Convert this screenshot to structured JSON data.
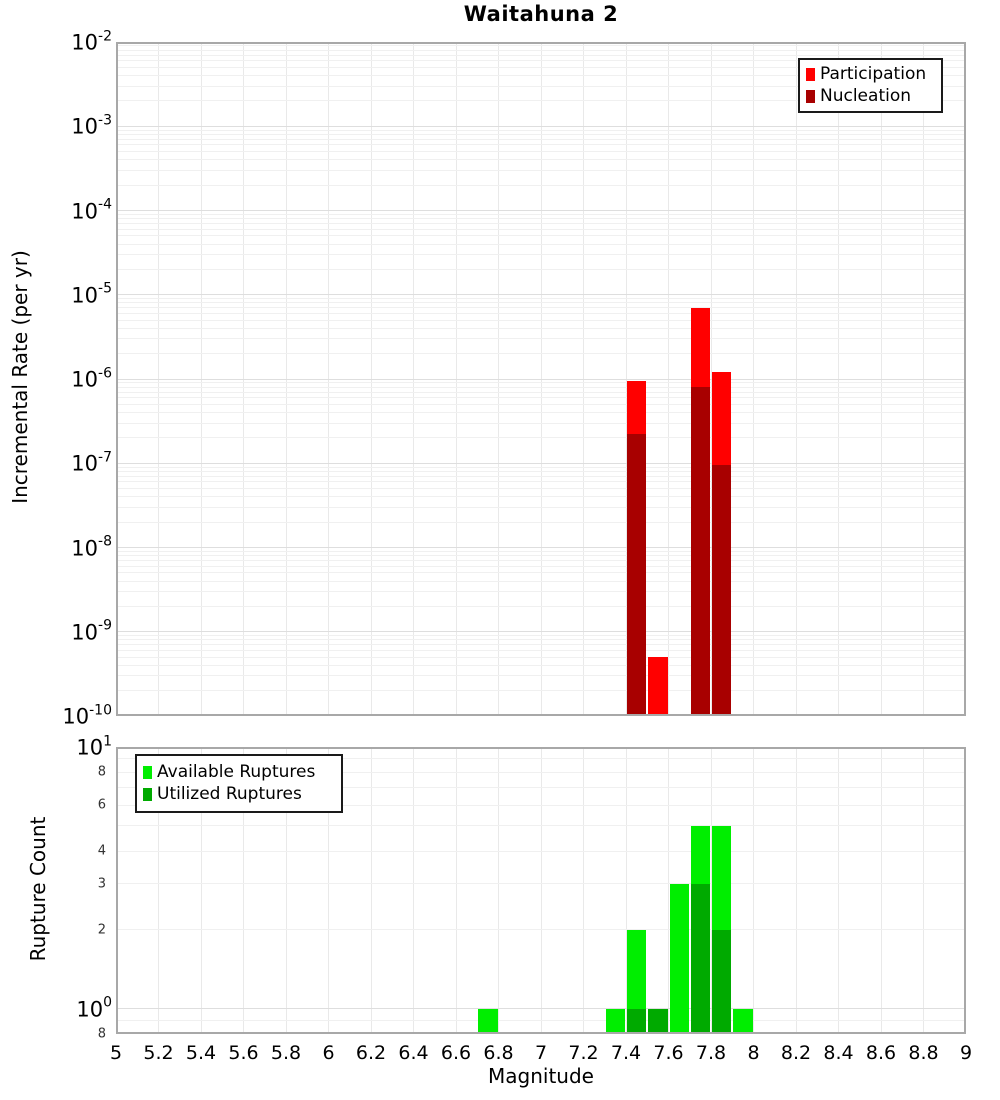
{
  "title": "Waitahuna 2",
  "xlabel": "Magnitude",
  "x_ticks": [
    {
      "label": "5",
      "value": 5
    },
    {
      "label": "5.2",
      "value": 5.2
    },
    {
      "label": "5.4",
      "value": 5.4
    },
    {
      "label": "5.6",
      "value": 5.6
    },
    {
      "label": "5.8",
      "value": 5.8
    },
    {
      "label": "6",
      "value": 6
    },
    {
      "label": "6.2",
      "value": 6.2
    },
    {
      "label": "6.4",
      "value": 6.4
    },
    {
      "label": "6.6",
      "value": 6.6
    },
    {
      "label": "6.8",
      "value": 6.8
    },
    {
      "label": "7",
      "value": 7
    },
    {
      "label": "7.2",
      "value": 7.2
    },
    {
      "label": "7.4",
      "value": 7.4
    },
    {
      "label": "7.6",
      "value": 7.6
    },
    {
      "label": "7.8",
      "value": 7.8
    },
    {
      "label": "8",
      "value": 8
    },
    {
      "label": "8.2",
      "value": 8.2
    },
    {
      "label": "8.4",
      "value": 8.4
    },
    {
      "label": "8.6",
      "value": 8.6
    },
    {
      "label": "8.8",
      "value": 8.8
    },
    {
      "label": "9",
      "value": 9
    }
  ],
  "colors": {
    "participation": "#ff0000",
    "nucleation": "#a80000",
    "available": "#00ee00",
    "utilized": "#00aa00",
    "grid_minor": "#f0f0f0",
    "grid_major": "#dedede",
    "grid_vertical": "#e9e9e9",
    "plot_border": "#a8a8a8",
    "legend_border": "#1a1a1a"
  },
  "chart_data": [
    {
      "type": "bar",
      "title": "Waitahuna 2",
      "ylabel": "Incremental Rate (per yr)",
      "xlabel": "Magnitude",
      "yscale": "log",
      "ylim": [
        1e-10,
        0.01
      ],
      "xlim": [
        5,
        9
      ],
      "bin_width": 0.1,
      "grid": true,
      "legend_position": "top-right",
      "legend": [
        {
          "label": "Participation",
          "color": "#ff0000"
        },
        {
          "label": "Nucleation",
          "color": "#a80000"
        }
      ],
      "y_major_ticks": [
        {
          "base": "10",
          "exp": "-2",
          "value": 0.01
        },
        {
          "base": "10",
          "exp": "-3",
          "value": 0.001
        },
        {
          "base": "10",
          "exp": "-4",
          "value": 0.0001
        },
        {
          "base": "10",
          "exp": "-5",
          "value": 1e-05
        },
        {
          "base": "10",
          "exp": "-6",
          "value": 1e-06
        },
        {
          "base": "10",
          "exp": "-7",
          "value": 1e-07
        },
        {
          "base": "10",
          "exp": "-8",
          "value": 1e-08
        },
        {
          "base": "10",
          "exp": "-9",
          "value": 1e-09
        },
        {
          "base": "10",
          "exp": "-10",
          "value": 1e-10
        }
      ],
      "series": [
        {
          "name": "Participation",
          "color": "#ff0000",
          "points": [
            {
              "x": 7.45,
              "y": 9.5e-07
            },
            {
              "x": 7.55,
              "y": 5e-10
            },
            {
              "x": 7.75,
              "y": 7e-06
            },
            {
              "x": 7.85,
              "y": 1.2e-06
            }
          ]
        },
        {
          "name": "Nucleation",
          "color": "#a80000",
          "points": [
            {
              "x": 7.45,
              "y": 2.2e-07
            },
            {
              "x": 7.75,
              "y": 8e-07
            },
            {
              "x": 7.85,
              "y": 9.5e-08
            }
          ]
        }
      ]
    },
    {
      "type": "bar",
      "ylabel": "Rupture Count",
      "xlabel": "Magnitude",
      "yscale": "log",
      "ylim": [
        0.8,
        10
      ],
      "xlim": [
        5,
        9
      ],
      "bin_width": 0.1,
      "grid": true,
      "legend_position": "top-left",
      "legend": [
        {
          "label": "Available Ruptures",
          "color": "#00ee00"
        },
        {
          "label": "Utilized Ruptures",
          "color": "#00aa00"
        }
      ],
      "y_major_ticks": [
        {
          "base": "10",
          "exp": "1",
          "value": 10
        },
        {
          "base": "10",
          "exp": "0",
          "value": 1
        }
      ],
      "y_minor_tick_labels": [
        {
          "label": "8",
          "value": 8
        },
        {
          "label": "6",
          "value": 6
        },
        {
          "label": "4",
          "value": 4
        },
        {
          "label": "3",
          "value": 3
        },
        {
          "label": "2",
          "value": 2
        },
        {
          "label": "8",
          "value": 0.8
        }
      ],
      "series": [
        {
          "name": "Available",
          "color": "#00ee00",
          "points": [
            {
              "x": 6.75,
              "y": 1
            },
            {
              "x": 7.35,
              "y": 1
            },
            {
              "x": 7.45,
              "y": 2
            },
            {
              "x": 7.55,
              "y": 1
            },
            {
              "x": 7.65,
              "y": 3
            },
            {
              "x": 7.75,
              "y": 5
            },
            {
              "x": 7.85,
              "y": 5
            },
            {
              "x": 7.95,
              "y": 1
            }
          ]
        },
        {
          "name": "Utilized",
          "color": "#00aa00",
          "points": [
            {
              "x": 7.45,
              "y": 1
            },
            {
              "x": 7.55,
              "y": 1
            },
            {
              "x": 7.75,
              "y": 3
            },
            {
              "x": 7.85,
              "y": 2
            }
          ]
        }
      ]
    }
  ]
}
